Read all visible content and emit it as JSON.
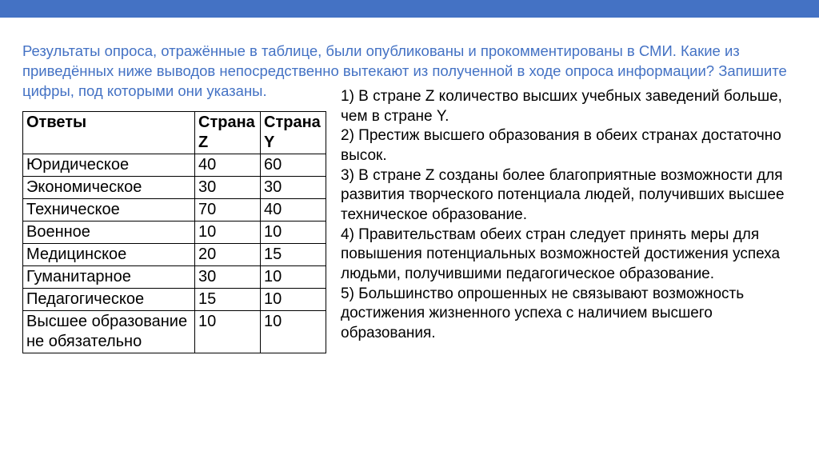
{
  "colors": {
    "accent": "#4472c4",
    "text": "#000000",
    "background": "#ffffff",
    "border": "#000000"
  },
  "question": "Результаты опроса, отражённые в таблице, были опубликованы и прокомментированы в СМИ. Какие из приведённых ниже выводов непосредственно вытекают из полученной в ходе опроса информации? Запишите цифры, под которыми они указаны.",
  "table": {
    "headers": [
      "Ответы",
      "Страна Z",
      "Страна Y"
    ],
    "rows": [
      [
        "Юридическое",
        "40",
        "60"
      ],
      [
        "Экономическое",
        "30",
        "30"
      ],
      [
        "Техническое",
        "70",
        "40"
      ],
      [
        "Военное",
        "10",
        "10"
      ],
      [
        "Медицинское",
        "20",
        "15"
      ],
      [
        "Гуманитарное",
        "30",
        "10"
      ],
      [
        "Педагогическое",
        "15",
        "10"
      ],
      [
        "Высшее образование не обязательно",
        "10",
        "10"
      ]
    ]
  },
  "options": [
    "1) В стране Z количество высших учебных заведений больше, чем в стране Y.",
    "2) Престиж высшего образования в обеих странах достаточно высок.",
    "3) В стране Z созданы более благоприятные возможности для развития творческого потенциала людей, получивших высшее техническое образование.",
    "4) Правительствам обеих стран следует принять меры для повышения потенциальных возможностей достижения успеха людьми, получившими педагогическое образование.",
    "5) Большинство опрошенных не связывают возможность достижения жизненного успеха с наличием высшего образования."
  ]
}
